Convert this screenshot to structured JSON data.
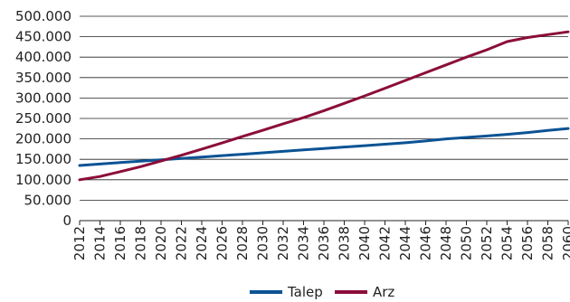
{
  "chart_data": {
    "type": "line",
    "title": "",
    "xlabel": "",
    "ylabel": "",
    "x": [
      "2012",
      "2014",
      "2016",
      "2018",
      "2020",
      "2022",
      "2024",
      "2026",
      "2028",
      "2030",
      "2032",
      "2034",
      "2036",
      "2038",
      "2040",
      "2042",
      "2044",
      "2046",
      "2048",
      "2050",
      "2052",
      "2054",
      "2056",
      "2058",
      "2060"
    ],
    "y_ticks": [
      "0",
      "50.000",
      "100.000",
      "150.000",
      "200.000",
      "250.000",
      "300.000",
      "350.000",
      "400.000",
      "450.000",
      "500.000"
    ],
    "ylim": [
      0,
      500000
    ],
    "grid": true,
    "legend_position": "bottom",
    "series": [
      {
        "name": "Talep",
        "color": "#0b5394",
        "values": [
          135000,
          138500,
          142000,
          145500,
          149000,
          152000,
          155500,
          159000,
          162500,
          166000,
          169500,
          173000,
          176500,
          180000,
          183500,
          187000,
          190500,
          195000,
          200000,
          203500,
          207000,
          211000,
          215500,
          220500,
          225500
        ]
      },
      {
        "name": "Arz",
        "color": "#8b0d3a",
        "values": [
          100000,
          108000,
          120000,
          132000,
          146000,
          160000,
          175000,
          190000,
          206000,
          221000,
          237000,
          252000,
          269000,
          287000,
          305000,
          324000,
          343000,
          362000,
          381000,
          400000,
          418000,
          438000,
          448000,
          455000,
          462000
        ]
      }
    ]
  }
}
